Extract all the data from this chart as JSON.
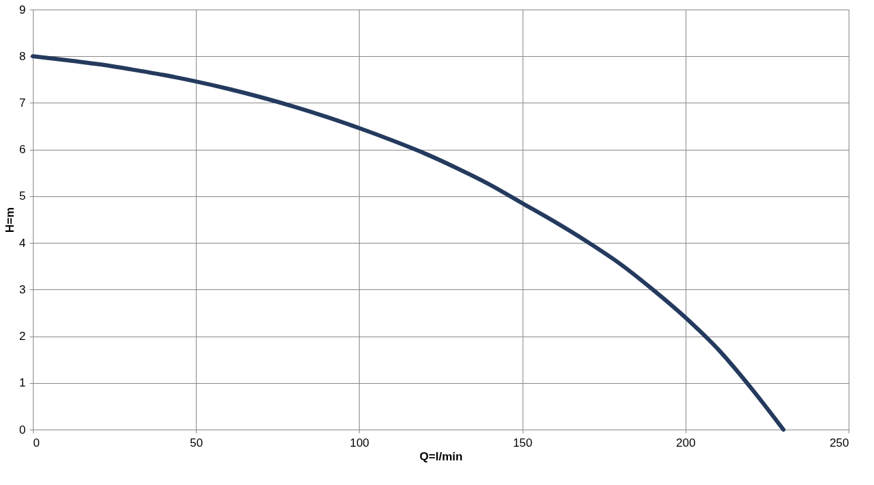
{
  "chart_data": {
    "type": "line",
    "xlabel": "Q=l/min",
    "ylabel": "H=m",
    "x": [
      0,
      10,
      20,
      30,
      40,
      50,
      60,
      70,
      80,
      90,
      100,
      110,
      120,
      130,
      140,
      150,
      160,
      170,
      180,
      190,
      200,
      210,
      220,
      230
    ],
    "series": [
      {
        "color": "#243a5e",
        "values": [
          8,
          7.92,
          7.83,
          7.72,
          7.6,
          7.46,
          7.3,
          7.12,
          6.92,
          6.7,
          6.46,
          6.2,
          5.92,
          5.6,
          5.25,
          4.85,
          4.45,
          4.02,
          3.55,
          3.0,
          2.4,
          1.72,
          0.9,
          0
        ]
      }
    ],
    "xlim": [
      0,
      250
    ],
    "xticks": [
      0,
      50,
      100,
      150,
      200,
      250
    ],
    "ylim": [
      0,
      9
    ],
    "yticks": [
      0,
      1,
      2,
      3,
      4,
      5,
      6,
      7,
      8,
      9
    ],
    "grid": true,
    "marker": "none",
    "line_style": "solid"
  }
}
